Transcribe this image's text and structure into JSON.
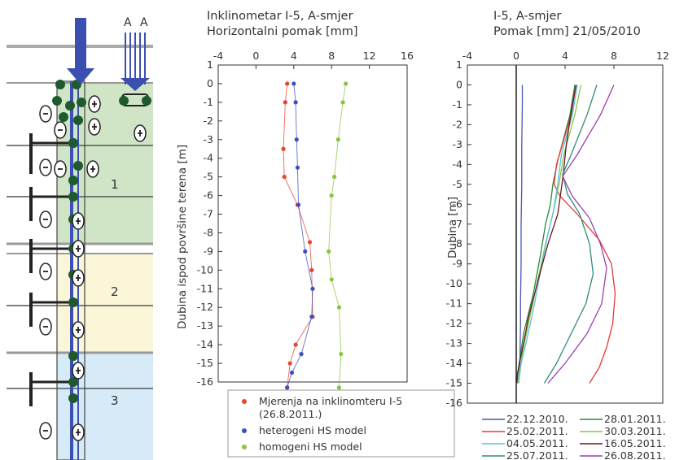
{
  "diagram": {
    "load_labels": [
      "A",
      "A"
    ],
    "layer_labels": [
      "1",
      "2",
      "3"
    ],
    "colors": {
      "layer1": "#cfe5c5",
      "layer2": "#fbf6d8",
      "layer3": "#d6ebf7",
      "arrow": "#3a4fb0",
      "anchor": "#1f5a2e",
      "pile": "#3a50b5"
    }
  },
  "chart_data": [
    {
      "type": "scatter",
      "title": "Inklinometar I-5, A-smjer",
      "subtitle": "Horizontalni pomak [mm]",
      "ylabel": "Dubina ispod površine terena [m]",
      "xlim": [
        -4,
        16
      ],
      "ylim": [
        -16,
        1
      ],
      "x_ticks": [
        -4,
        0,
        4,
        8,
        12,
        16
      ],
      "y_ticks": [
        1,
        0,
        -1,
        -2,
        -3,
        -4,
        -5,
        -6,
        -7,
        -8,
        -9,
        -10,
        -11,
        -12,
        -13,
        -14,
        -15,
        -16
      ],
      "grid": false,
      "legend_position": "bottom",
      "series": [
        {
          "name": "Mjerenja na inklinomteru I-5 (26.8.2011.)",
          "legend_lines": [
            "Mjerenja na inklinomteru I-5",
            "(26.8.2011.)"
          ],
          "color": "#e8432e",
          "points": [
            [
              3.3,
              0
            ],
            [
              3.1,
              -1
            ],
            [
              2.9,
              -3.5
            ],
            [
              3.0,
              -5
            ],
            [
              4.4,
              -6.5
            ],
            [
              5.7,
              -8.5
            ],
            [
              5.9,
              -10
            ],
            [
              6.0,
              -12.5
            ],
            [
              4.2,
              -14
            ],
            [
              3.6,
              -15
            ],
            [
              3.3,
              -16.3
            ]
          ]
        },
        {
          "name": "heterogeni HS model",
          "color": "#3c4fc0",
          "points": [
            [
              4.0,
              0
            ],
            [
              4.2,
              -1
            ],
            [
              4.3,
              -3
            ],
            [
              4.4,
              -4.5
            ],
            [
              4.5,
              -6.5
            ],
            [
              5.2,
              -9
            ],
            [
              6.0,
              -11
            ],
            [
              5.9,
              -12.5
            ],
            [
              4.8,
              -14.5
            ],
            [
              3.8,
              -15.5
            ],
            [
              3.3,
              -16.3
            ]
          ]
        },
        {
          "name": "homogeni HS model",
          "color": "#8ac53f",
          "points": [
            [
              9.5,
              0
            ],
            [
              9.2,
              -1
            ],
            [
              8.7,
              -3
            ],
            [
              8.3,
              -5
            ],
            [
              8.0,
              -6
            ],
            [
              7.7,
              -9
            ],
            [
              8.0,
              -10.5
            ],
            [
              8.8,
              -12
            ],
            [
              9.0,
              -14.5
            ],
            [
              8.8,
              -16.3
            ]
          ]
        }
      ]
    },
    {
      "type": "line",
      "title": "I-5, A-smjer",
      "subtitle": "Pomak [mm] 21/05/2010",
      "ylabel": "Dubina  [m]",
      "xlim": [
        -4,
        12
      ],
      "ylim": [
        -16,
        1
      ],
      "x_ticks": [
        -4,
        0,
        4,
        8,
        12
      ],
      "y_ticks": [
        1,
        0,
        -1,
        -2,
        -3,
        -4,
        -5,
        -6,
        -7,
        -8,
        -9,
        -10,
        -11,
        -12,
        -13,
        -14,
        -15,
        -16
      ],
      "grid": false,
      "legend_position": "bottom",
      "series": [
        {
          "name": "22.12.2010.",
          "color": "#4a57b8",
          "points": [
            [
              0.5,
              0
            ],
            [
              0.5,
              -1
            ],
            [
              0.45,
              -3
            ],
            [
              0.45,
              -5
            ],
            [
              0.4,
              -7
            ],
            [
              0.4,
              -9
            ],
            [
              0.35,
              -10.8
            ],
            [
              0.35,
              -12
            ],
            [
              0.3,
              -14
            ],
            [
              0.1,
              -15
            ]
          ]
        },
        {
          "name": "28.01.2011.",
          "color": "#2a8a3a",
          "points": [
            [
              4.8,
              0
            ],
            [
              4.4,
              -1.5
            ],
            [
              3.4,
              -3.8
            ],
            [
              3.0,
              -5
            ],
            [
              2.8,
              -6
            ],
            [
              2.4,
              -7
            ],
            [
              2.0,
              -8.5
            ],
            [
              1.4,
              -10.5
            ],
            [
              0.6,
              -12.5
            ],
            [
              0.2,
              -14.2
            ],
            [
              0.1,
              -15
            ]
          ]
        },
        {
          "name": "25.02.2011.",
          "color": "#e43b3b",
          "points": [
            [
              4.9,
              0
            ],
            [
              4.5,
              -1.5
            ],
            [
              3.3,
              -4
            ],
            [
              3.1,
              -5
            ],
            [
              3.6,
              -5.6
            ],
            [
              5.0,
              -6.5
            ],
            [
              6.8,
              -7.8
            ],
            [
              7.8,
              -9
            ],
            [
              8.1,
              -10.5
            ],
            [
              7.9,
              -12
            ],
            [
              7.4,
              -13.2
            ],
            [
              6.8,
              -14.2
            ],
            [
              6.0,
              -15
            ]
          ]
        },
        {
          "name": "30.03.2011.",
          "color": "#8ac53f",
          "points": [
            [
              5.3,
              0
            ],
            [
              4.8,
              -1.5
            ],
            [
              3.9,
              -3.5
            ],
            [
              3.5,
              -5
            ],
            [
              3.1,
              -6.2
            ],
            [
              2.4,
              -8
            ],
            [
              1.7,
              -10
            ],
            [
              1.0,
              -12
            ],
            [
              0.5,
              -13.5
            ],
            [
              0.2,
              -15
            ]
          ]
        },
        {
          "name": "04.05.2011.",
          "color": "#5bc0e6",
          "points": [
            [
              5.0,
              0
            ],
            [
              4.6,
              -1.5
            ],
            [
              3.7,
              -3.5
            ],
            [
              3.4,
              -5
            ],
            [
              3.0,
              -6.5
            ],
            [
              2.6,
              -7.5
            ],
            [
              2.1,
              -9
            ],
            [
              1.5,
              -11
            ],
            [
              0.8,
              -13
            ],
            [
              0.2,
              -14.5
            ],
            [
              0.1,
              -15
            ]
          ]
        },
        {
          "name": "16.05.2011.",
          "color": "#6a1a1a",
          "points": [
            [
              4.9,
              0
            ],
            [
              4.6,
              -1
            ],
            [
              4.1,
              -3
            ],
            [
              3.9,
              -4.2
            ],
            [
              3.7,
              -5.2
            ],
            [
              3.4,
              -6.5
            ],
            [
              2.6,
              -8
            ],
            [
              1.8,
              -9.8
            ],
            [
              1.0,
              -11.7
            ],
            [
              0.6,
              -13
            ],
            [
              0.1,
              -14.5
            ],
            [
              0.05,
              -15
            ]
          ]
        },
        {
          "name": "25.07.2011.",
          "color": "#2f8b78",
          "points": [
            [
              6.6,
              0
            ],
            [
              5.8,
              -1.5
            ],
            [
              4.5,
              -3.5
            ],
            [
              3.8,
              -4.5
            ],
            [
              4.2,
              -5.5
            ],
            [
              5.2,
              -6.5
            ],
            [
              6.0,
              -8
            ],
            [
              6.3,
              -9.5
            ],
            [
              5.7,
              -11
            ],
            [
              4.5,
              -12.5
            ],
            [
              3.3,
              -14
            ],
            [
              2.3,
              -15
            ]
          ]
        },
        {
          "name": "26.08.2011.",
          "color": "#9b3fb0",
          "points": [
            [
              8.0,
              0
            ],
            [
              6.9,
              -1.5
            ],
            [
              5.0,
              -3.5
            ],
            [
              3.8,
              -4.6
            ],
            [
              4.6,
              -5.6
            ],
            [
              6.0,
              -6.7
            ],
            [
              6.9,
              -8
            ],
            [
              7.4,
              -9.2
            ],
            [
              7.0,
              -11
            ],
            [
              5.8,
              -12.5
            ],
            [
              4.0,
              -14
            ],
            [
              2.6,
              -15
            ]
          ]
        }
      ]
    }
  ]
}
